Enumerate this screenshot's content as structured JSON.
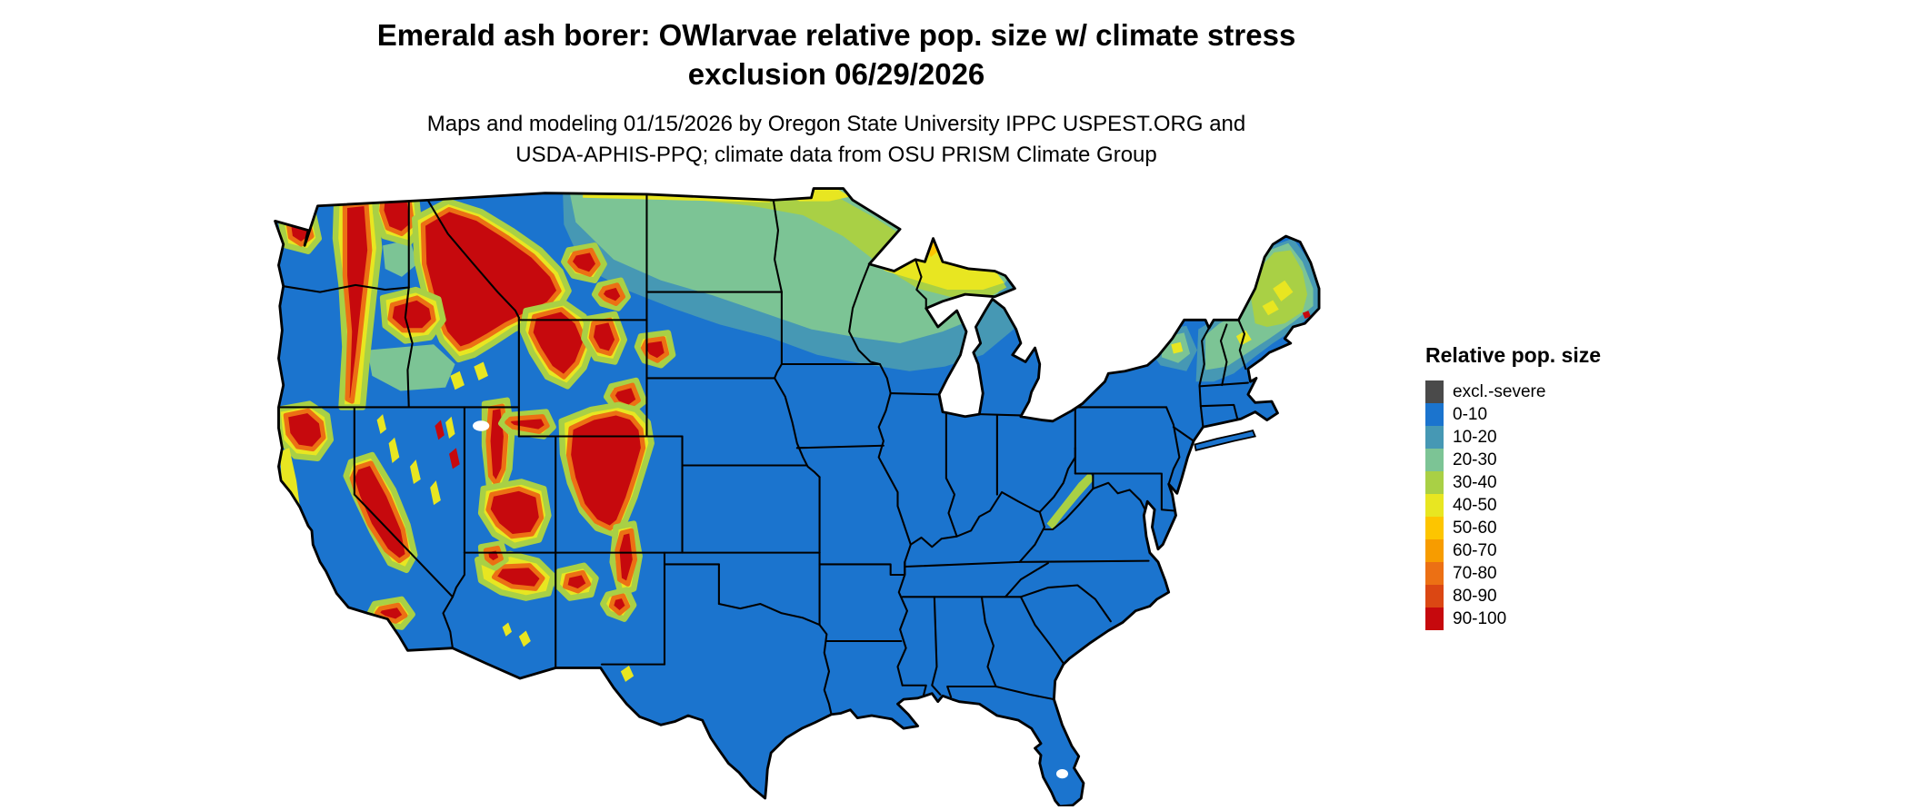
{
  "title": "Emerald ash borer: OWlarvae relative pop. size w/ climate stress exclusion 06/29/2026",
  "title_lines": [
    "Emerald ash borer: OWlarvae relative pop. size w/ climate stress",
    "exclusion 06/29/2026"
  ],
  "subtitle": "Maps and modeling 01/15/2026 by Oregon State University IPPC USPEST.ORG and USDA-APHIS-PPQ; climate data from OSU PRISM Climate Group",
  "subtitle_lines": [
    "Maps and modeling 01/15/2026 by Oregon State University IPPC USPEST.ORG and",
    "USDA-APHIS-PPQ; climate data from OSU PRISM Climate Group"
  ],
  "legend": {
    "title": "Relative pop. size",
    "items": [
      {
        "label": "excl.-severe",
        "color": "#4a4a4a"
      },
      {
        "label": "0-10",
        "color": "#1b74ce"
      },
      {
        "label": "10-20",
        "color": "#4698b4"
      },
      {
        "label": "20-30",
        "color": "#7cc495"
      },
      {
        "label": "30-40",
        "color": "#a9d045"
      },
      {
        "label": "40-50",
        "color": "#e8e621"
      },
      {
        "label": "50-60",
        "color": "#fdc500"
      },
      {
        "label": "60-70",
        "color": "#f79c00"
      },
      {
        "label": "70-80",
        "color": "#ec7014"
      },
      {
        "label": "80-90",
        "color": "#db4713"
      },
      {
        "label": "90-100",
        "color": "#c6090d"
      }
    ]
  },
  "chart_data": {
    "type": "heatmap",
    "subtype": "geographic-raster-choropleth",
    "title": "Emerald ash borer: OWlarvae relative pop. size w/ climate stress exclusion 06/29/2026",
    "map_extent": "Continental United States with state boundaries",
    "legend_title": "Relative pop. size",
    "categories": [
      "excl.-severe",
      "0-10",
      "10-20",
      "20-30",
      "30-40",
      "40-50",
      "50-60",
      "60-70",
      "70-80",
      "80-90",
      "90-100"
    ],
    "colors": [
      "#4a4a4a",
      "#1b74ce",
      "#4698b4",
      "#7cc495",
      "#a9d045",
      "#e8e621",
      "#fdc500",
      "#f79c00",
      "#ec7014",
      "#db4713",
      "#c6090d"
    ],
    "regions": [
      {
        "region": "Eastern, central and southern US lowlands (Plains, Midwest, South, East Coast, Texas, Florida, California valleys/deserts)",
        "value_bin": "0-10"
      },
      {
        "region": "Northern transition band (eastern Montana, North Dakota, northern Minnesota, northern Wisconsin)",
        "value_bin": "10-40"
      },
      {
        "region": "Michigan Upper Peninsula and Lake Superior shoreline",
        "value_bin": "30-60"
      },
      {
        "region": "Northern New England (Maine, NH, VT) and Adirondacks",
        "value_bin": "20-50 with small 90-100 spots on the Maine coast"
      },
      {
        "region": "Northern Rockies (Idaho, western Montana) and Yellowstone/Wind River/Bighorn ranges",
        "value_bin": "90-100 core with 40-80 fringe"
      },
      {
        "region": "Colorado Rockies extending into northern New Mexico (Sangre de Cristo)",
        "value_bin": "90-100 core with 40-80 fringe"
      },
      {
        "region": "Cascades (WA/OR), Olympic Mountains, Klamath, Sierra Nevada, Wasatch/Uinta and southern Utah plateaus",
        "value_bin": "90-100 core with 40-80 fringe"
      },
      {
        "region": "Scattered ranges (NE Washington, Blue Mountains OR, Nevada basin-and-range, Black Hills, Mogollon Rim AZ, Gila/Sacramento NM)",
        "value_bin": "40-100 patches"
      }
    ],
    "legend_position": "right"
  }
}
